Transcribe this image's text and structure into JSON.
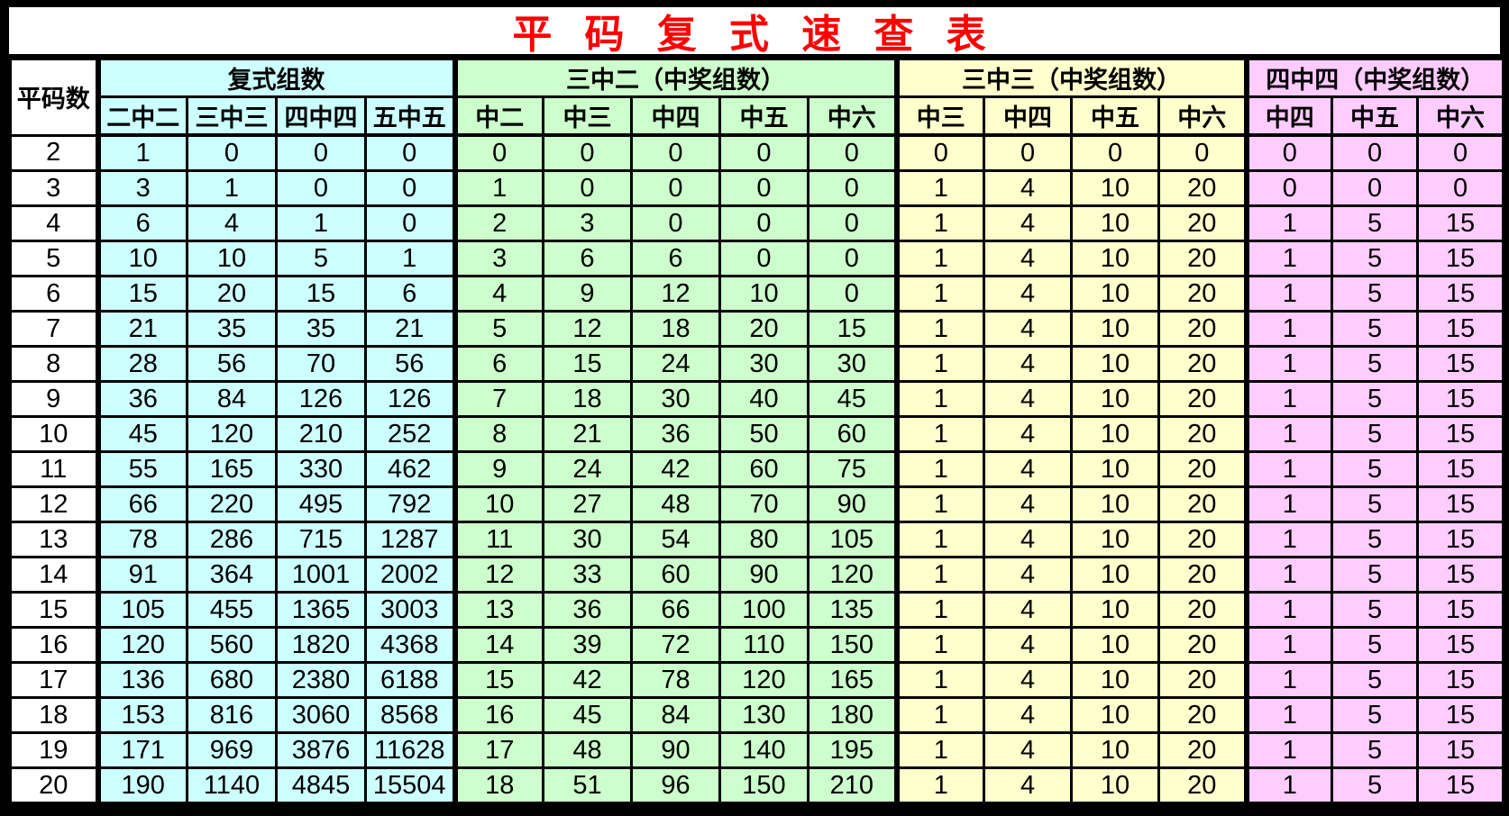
{
  "title": "平 码 复 式 速 查 表",
  "colors": {
    "title_red": "#FF0000",
    "grid_black": "#000000",
    "section_fushi_cyan": "#CCFFFF",
    "section_3zhong2_green": "#CCFFCC",
    "section_3zhong3_yellow": "#FFFFCC",
    "section_4zhong4_pink": "#FFCCFF",
    "row_header_white": "#FFFFFF"
  },
  "chart_data": {
    "type": "table",
    "title": "平 码 复 式 速 查 表",
    "row_header": "平码数",
    "groups": [
      {
        "label": "复式组数",
        "color": "#CCFFFF",
        "subcols": [
          "二中二",
          "三中三",
          "四中四",
          "五中五"
        ]
      },
      {
        "label": "三中二（中奖组数）",
        "color": "#CCFFCC",
        "subcols": [
          "中二",
          "中三",
          "中四",
          "中五",
          "中六"
        ]
      },
      {
        "label": "三中三（中奖组数）",
        "color": "#FFFFCC",
        "subcols": [
          "中三",
          "中四",
          "中五",
          "中六"
        ]
      },
      {
        "label": "四中四（中奖组数）",
        "color": "#FFCCFF",
        "subcols": [
          "中四",
          "中五",
          "中六"
        ]
      }
    ],
    "rows": [
      {
        "n": "2",
        "cells": [
          [
            "1",
            "0",
            "0",
            "0"
          ],
          [
            "0",
            "0",
            "0",
            "0",
            "0"
          ],
          [
            "0",
            "0",
            "0",
            "0"
          ],
          [
            "0",
            "0",
            "0"
          ]
        ]
      },
      {
        "n": "3",
        "cells": [
          [
            "3",
            "1",
            "0",
            "0"
          ],
          [
            "1",
            "0",
            "0",
            "0",
            "0"
          ],
          [
            "1",
            "4",
            "10",
            "20"
          ],
          [
            "0",
            "0",
            "0"
          ]
        ]
      },
      {
        "n": "4",
        "cells": [
          [
            "6",
            "4",
            "1",
            "0"
          ],
          [
            "2",
            "3",
            "0",
            "0",
            "0"
          ],
          [
            "1",
            "4",
            "10",
            "20"
          ],
          [
            "1",
            "5",
            "15"
          ]
        ]
      },
      {
        "n": "5",
        "cells": [
          [
            "10",
            "10",
            "5",
            "1"
          ],
          [
            "3",
            "6",
            "6",
            "0",
            "0"
          ],
          [
            "1",
            "4",
            "10",
            "20"
          ],
          [
            "1",
            "5",
            "15"
          ]
        ]
      },
      {
        "n": "6",
        "cells": [
          [
            "15",
            "20",
            "15",
            "6"
          ],
          [
            "4",
            "9",
            "12",
            "10",
            "0"
          ],
          [
            "1",
            "4",
            "10",
            "20"
          ],
          [
            "1",
            "5",
            "15"
          ]
        ]
      },
      {
        "n": "7",
        "cells": [
          [
            "21",
            "35",
            "35",
            "21"
          ],
          [
            "5",
            "12",
            "18",
            "20",
            "15"
          ],
          [
            "1",
            "4",
            "10",
            "20"
          ],
          [
            "1",
            "5",
            "15"
          ]
        ]
      },
      {
        "n": "8",
        "cells": [
          [
            "28",
            "56",
            "70",
            "56"
          ],
          [
            "6",
            "15",
            "24",
            "30",
            "30"
          ],
          [
            "1",
            "4",
            "10",
            "20"
          ],
          [
            "1",
            "5",
            "15"
          ]
        ]
      },
      {
        "n": "9",
        "cells": [
          [
            "36",
            "84",
            "126",
            "126"
          ],
          [
            "7",
            "18",
            "30",
            "40",
            "45"
          ],
          [
            "1",
            "4",
            "10",
            "20"
          ],
          [
            "1",
            "5",
            "15"
          ]
        ]
      },
      {
        "n": "10",
        "cells": [
          [
            "45",
            "120",
            "210",
            "252"
          ],
          [
            "8",
            "21",
            "36",
            "50",
            "60"
          ],
          [
            "1",
            "4",
            "10",
            "20"
          ],
          [
            "1",
            "5",
            "15"
          ]
        ]
      },
      {
        "n": "11",
        "cells": [
          [
            "55",
            "165",
            "330",
            "462"
          ],
          [
            "9",
            "24",
            "42",
            "60",
            "75"
          ],
          [
            "1",
            "4",
            "10",
            "20"
          ],
          [
            "1",
            "5",
            "15"
          ]
        ]
      },
      {
        "n": "12",
        "cells": [
          [
            "66",
            "220",
            "495",
            "792"
          ],
          [
            "10",
            "27",
            "48",
            "70",
            "90"
          ],
          [
            "1",
            "4",
            "10",
            "20"
          ],
          [
            "1",
            "5",
            "15"
          ]
        ]
      },
      {
        "n": "13",
        "cells": [
          [
            "78",
            "286",
            "715",
            "1287"
          ],
          [
            "11",
            "30",
            "54",
            "80",
            "105"
          ],
          [
            "1",
            "4",
            "10",
            "20"
          ],
          [
            "1",
            "5",
            "15"
          ]
        ]
      },
      {
        "n": "14",
        "cells": [
          [
            "91",
            "364",
            "1001",
            "2002"
          ],
          [
            "12",
            "33",
            "60",
            "90",
            "120"
          ],
          [
            "1",
            "4",
            "10",
            "20"
          ],
          [
            "1",
            "5",
            "15"
          ]
        ]
      },
      {
        "n": "15",
        "cells": [
          [
            "105",
            "455",
            "1365",
            "3003"
          ],
          [
            "13",
            "36",
            "66",
            "100",
            "135"
          ],
          [
            "1",
            "4",
            "10",
            "20"
          ],
          [
            "1",
            "5",
            "15"
          ]
        ]
      },
      {
        "n": "16",
        "cells": [
          [
            "120",
            "560",
            "1820",
            "4368"
          ],
          [
            "14",
            "39",
            "72",
            "110",
            "150"
          ],
          [
            "1",
            "4",
            "10",
            "20"
          ],
          [
            "1",
            "5",
            "15"
          ]
        ]
      },
      {
        "n": "17",
        "cells": [
          [
            "136",
            "680",
            "2380",
            "6188"
          ],
          [
            "15",
            "42",
            "78",
            "120",
            "165"
          ],
          [
            "1",
            "4",
            "10",
            "20"
          ],
          [
            "1",
            "5",
            "15"
          ]
        ]
      },
      {
        "n": "18",
        "cells": [
          [
            "153",
            "816",
            "3060",
            "8568"
          ],
          [
            "16",
            "45",
            "84",
            "130",
            "180"
          ],
          [
            "1",
            "4",
            "10",
            "20"
          ],
          [
            "1",
            "5",
            "15"
          ]
        ]
      },
      {
        "n": "19",
        "cells": [
          [
            "171",
            "969",
            "3876",
            "11628"
          ],
          [
            "17",
            "48",
            "90",
            "140",
            "195"
          ],
          [
            "1",
            "4",
            "10",
            "20"
          ],
          [
            "1",
            "5",
            "15"
          ]
        ]
      },
      {
        "n": "20",
        "cells": [
          [
            "190",
            "1140",
            "4845",
            "15504"
          ],
          [
            "18",
            "51",
            "96",
            "150",
            "210"
          ],
          [
            "1",
            "4",
            "10",
            "20"
          ],
          [
            "1",
            "5",
            "15"
          ]
        ]
      }
    ]
  }
}
